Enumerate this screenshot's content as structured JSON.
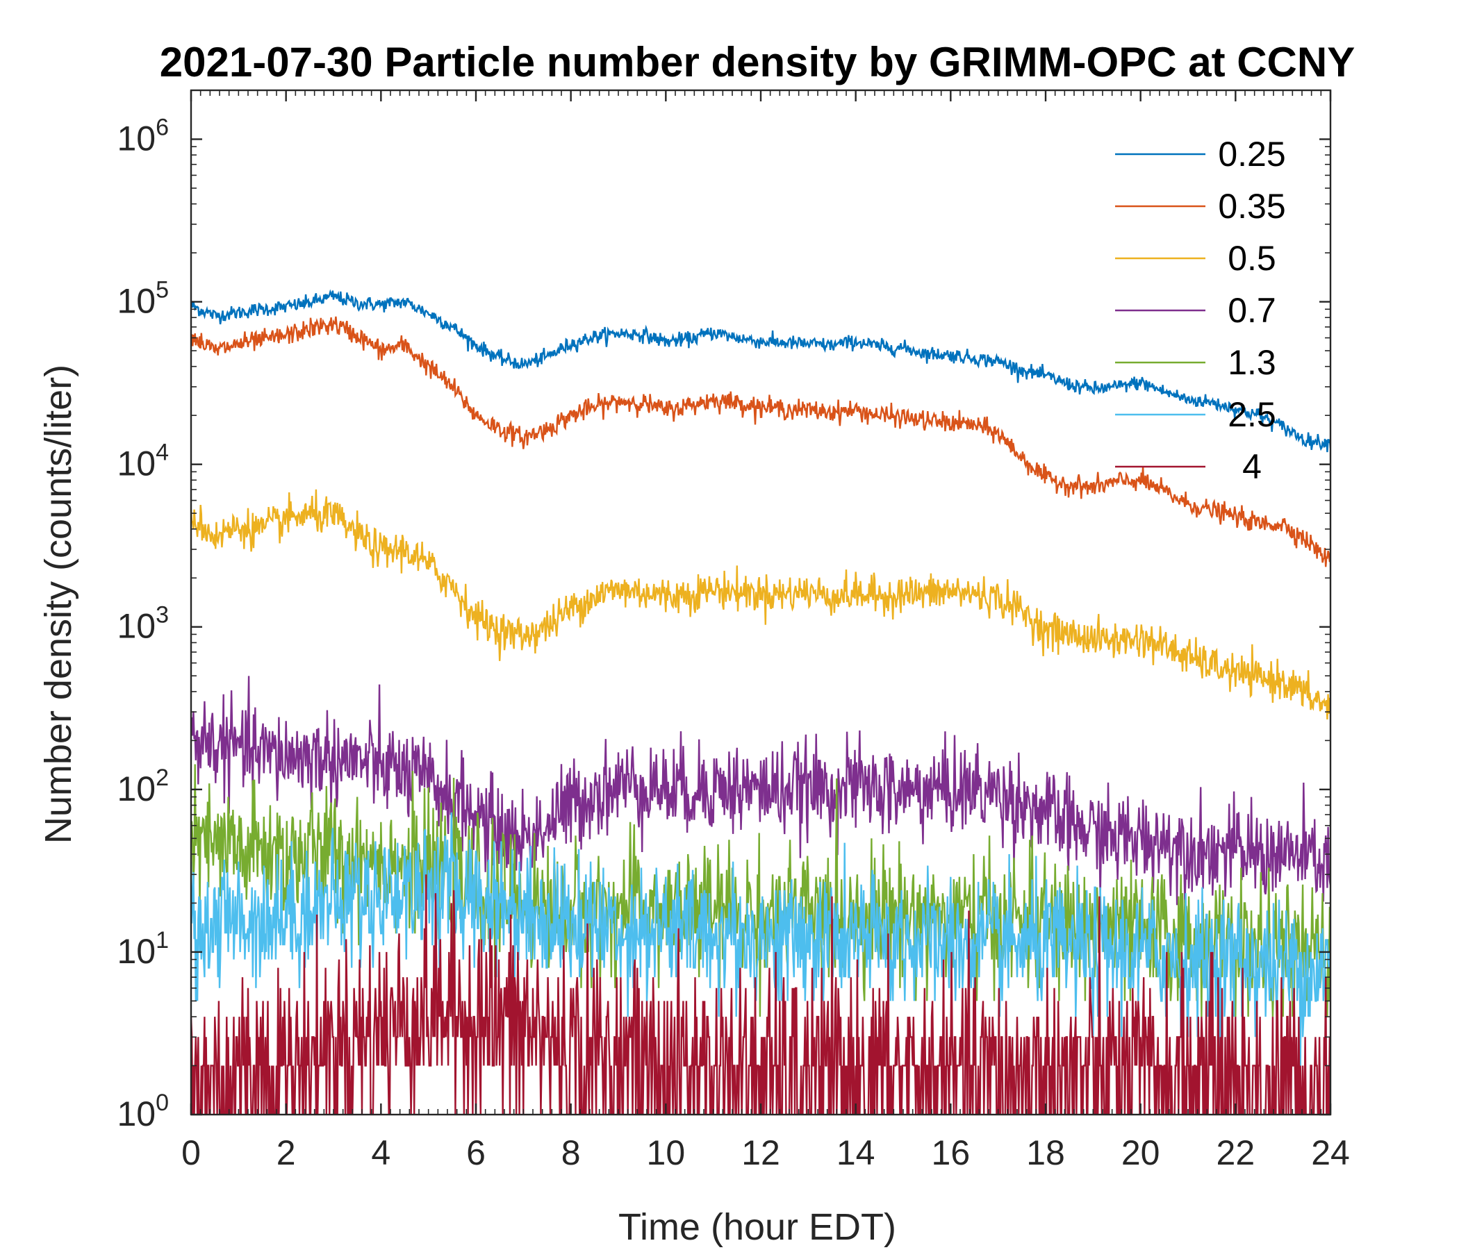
{
  "chart_data": {
    "type": "line",
    "title": "2021-07-30 Particle number density by GRIMM-OPC at CCNY",
    "xlabel": "Time (hour EDT)",
    "ylabel": "Number density (counts/liter)",
    "xlim": [
      0,
      24
    ],
    "ylim": [
      1,
      2000000
    ],
    "yscale": "log",
    "grid": false,
    "legend_position": "top-right",
    "x_ticks": [
      0,
      2,
      4,
      6,
      8,
      10,
      12,
      14,
      16,
      18,
      20,
      22,
      24
    ],
    "x_tick_labels": [
      "0",
      "2",
      "4",
      "6",
      "8",
      "10",
      "12",
      "14",
      "16",
      "18",
      "20",
      "22",
      "24"
    ],
    "y_ticks": [
      1,
      10,
      100,
      1000,
      10000,
      100000,
      1000000
    ],
    "y_tick_labels": [
      {
        "base": "10",
        "exp": "0"
      },
      {
        "base": "10",
        "exp": "1"
      },
      {
        "base": "10",
        "exp": "2"
      },
      {
        "base": "10",
        "exp": "3"
      },
      {
        "base": "10",
        "exp": "4"
      },
      {
        "base": "10",
        "exp": "5"
      },
      {
        "base": "10",
        "exp": "6"
      }
    ],
    "series": [
      {
        "name": "0.25",
        "color": "#0072BD",
        "noise": 0.05,
        "x": [
          0,
          0.5,
          1,
          1.5,
          2,
          2.5,
          3,
          3.5,
          4,
          4.5,
          5,
          5.5,
          6,
          6.5,
          7,
          7.5,
          8,
          8.5,
          9,
          9.5,
          10,
          10.5,
          11,
          11.5,
          12,
          12.5,
          13,
          13.5,
          14,
          14.5,
          15,
          15.5,
          16,
          16.5,
          17,
          17.5,
          18,
          18.5,
          19,
          19.5,
          20,
          20.5,
          21,
          21.5,
          22,
          22.5,
          23,
          23.5,
          24
        ],
        "y": [
          95000,
          82000,
          86000,
          90000,
          93000,
          99000,
          108000,
          98000,
          96000,
          100000,
          85000,
          70000,
          54000,
          45000,
          41000,
          46000,
          55000,
          61000,
          64000,
          63000,
          57000,
          59000,
          65000,
          60000,
          57000,
          56000,
          55000,
          54000,
          57000,
          53000,
          52000,
          48000,
          47000,
          45000,
          43000,
          38000,
          35000,
          31000,
          29000,
          30000,
          32000,
          28000,
          25000,
          24000,
          22000,
          20000,
          17000,
          14000,
          13500
        ]
      },
      {
        "name": "0.35",
        "color": "#D95319",
        "noise": 0.07,
        "x": [
          0,
          0.5,
          1,
          1.5,
          2,
          2.5,
          3,
          3.5,
          4,
          4.5,
          5,
          5.5,
          6,
          6.5,
          7,
          7.5,
          8,
          8.5,
          9,
          9.5,
          10,
          10.5,
          11,
          11.5,
          12,
          12.5,
          13,
          13.5,
          14,
          14.5,
          15,
          15.5,
          16,
          16.5,
          17,
          17.5,
          18,
          18.5,
          19,
          19.5,
          20,
          20.5,
          21,
          21.5,
          22,
          22.5,
          23,
          23.5,
          24
        ],
        "y": [
          62000,
          50000,
          55000,
          58000,
          62000,
          68000,
          73000,
          62000,
          50000,
          54000,
          40000,
          30000,
          20000,
          16500,
          14500,
          16500,
          20000,
          22500,
          24500,
          24000,
          21500,
          23000,
          25000,
          24000,
          22500,
          22000,
          21500,
          21000,
          21500,
          20000,
          19500,
          18500,
          18000,
          17500,
          15500,
          11000,
          8200,
          7500,
          7200,
          7800,
          8000,
          6800,
          5700,
          5200,
          4800,
          4300,
          4300,
          3400,
          2500
        ]
      },
      {
        "name": "0.5",
        "color": "#EDB120",
        "noise": 0.13,
        "x": [
          0,
          0.5,
          1,
          1.5,
          2,
          2.5,
          3,
          3.5,
          4,
          4.5,
          5,
          5.5,
          6,
          6.5,
          7,
          7.5,
          8,
          8.5,
          9,
          9.5,
          10,
          10.5,
          11,
          11.5,
          12,
          12.5,
          13,
          13.5,
          14,
          14.5,
          15,
          15.5,
          16,
          16.5,
          17,
          17.5,
          18,
          18.5,
          19,
          19.5,
          20,
          20.5,
          21,
          21.5,
          22,
          22.5,
          23,
          23.5,
          24
        ],
        "y": [
          4800,
          3600,
          4100,
          4000,
          4600,
          4900,
          4800,
          3700,
          2900,
          3000,
          2400,
          1800,
          1150,
          950,
          880,
          1000,
          1300,
          1550,
          1700,
          1650,
          1550,
          1600,
          1700,
          1650,
          1600,
          1600,
          1650,
          1550,
          1600,
          1550,
          1600,
          1600,
          1650,
          1600,
          1500,
          1250,
          950,
          900,
          850,
          820,
          850,
          760,
          650,
          580,
          520,
          480,
          470,
          380,
          320
        ]
      },
      {
        "name": "0.7",
        "color": "#7E2F8E",
        "noise": 0.32,
        "x": [
          0,
          0.5,
          1,
          1.5,
          2,
          2.5,
          3,
          3.5,
          4,
          4.5,
          5,
          5.5,
          6,
          6.5,
          7,
          7.5,
          8,
          8.5,
          9,
          9.5,
          10,
          10.5,
          11,
          11.5,
          12,
          12.5,
          13,
          13.5,
          14,
          14.5,
          15,
          15.5,
          16,
          16.5,
          17,
          17.5,
          18,
          18.5,
          19,
          19.5,
          20,
          20.5,
          21,
          21.5,
          22,
          22.5,
          23,
          23.5,
          24
        ],
        "y": [
          210,
          190,
          180,
          165,
          160,
          160,
          155,
          150,
          140,
          125,
          110,
          90,
          70,
          55,
          50,
          60,
          80,
          95,
          105,
          110,
          100,
          100,
          105,
          100,
          100,
          100,
          100,
          100,
          105,
          100,
          95,
          100,
          100,
          100,
          95,
          85,
          70,
          60,
          55,
          50,
          50,
          48,
          45,
          42,
          42,
          40,
          40,
          38,
          35
        ]
      },
      {
        "name": "1.3",
        "color": "#77AC30",
        "noise": 0.45,
        "x": [
          0,
          1,
          2,
          3,
          4,
          5,
          6,
          7,
          8,
          9,
          10,
          11,
          12,
          13,
          14,
          15,
          16,
          17,
          18,
          19,
          20,
          21,
          22,
          23,
          24
        ],
        "y": [
          45,
          42,
          40,
          40,
          38,
          32,
          25,
          20,
          18,
          18,
          18,
          18,
          17,
          17,
          17,
          17,
          16,
          16,
          15,
          14,
          13,
          12,
          11,
          10,
          9
        ]
      },
      {
        "name": "2.5",
        "color": "#4DBEEE",
        "noise": 0.45,
        "x": [
          0,
          1,
          2,
          3,
          4,
          5,
          6,
          7,
          8,
          9,
          10,
          11,
          12,
          13,
          14,
          15,
          16,
          17,
          18,
          19,
          20,
          21,
          22,
          23,
          24
        ],
        "y": [
          14,
          16,
          17,
          20,
          23,
          25,
          22,
          18,
          15,
          14,
          14,
          13,
          12,
          12,
          12,
          12,
          11,
          11,
          11,
          10,
          10,
          9,
          9,
          8,
          8
        ]
      },
      {
        "name": "4",
        "color": "#A2142F",
        "noise": 0.7,
        "x": [
          0,
          1,
          2,
          3,
          4,
          5,
          6,
          7,
          8,
          9,
          10,
          11,
          12,
          13,
          14,
          15,
          16,
          17,
          18,
          19,
          20,
          21,
          22,
          23,
          24
        ],
        "y": [
          1.5,
          2,
          2,
          2.5,
          3.5,
          4.5,
          4,
          3.5,
          2.5,
          2.2,
          2,
          2,
          1.8,
          1.8,
          1.8,
          1.8,
          1.8,
          1.8,
          1.8,
          1.8,
          1.8,
          1.8,
          1.8,
          1.6,
          1.5
        ]
      }
    ]
  }
}
